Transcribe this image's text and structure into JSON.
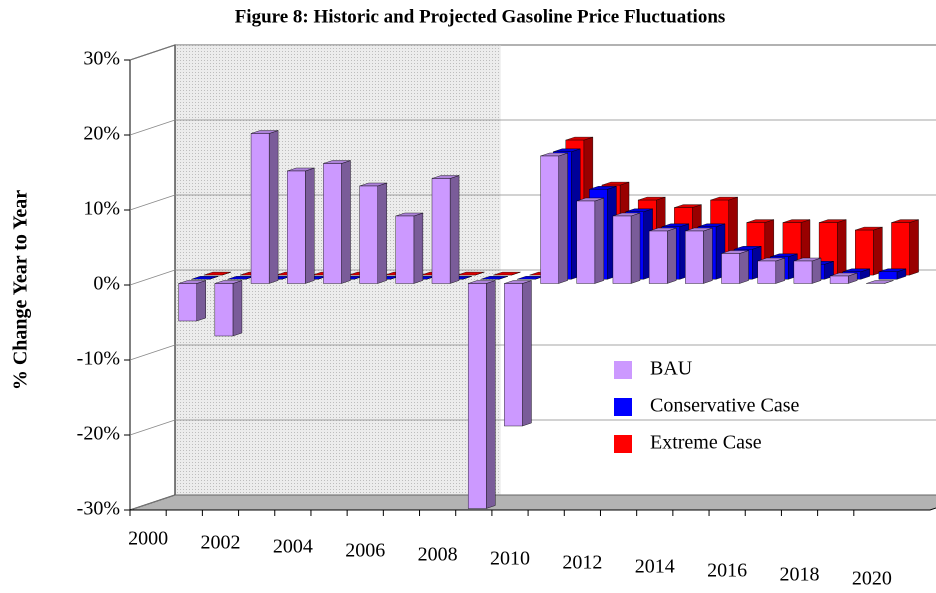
{
  "chart_data": {
    "type": "bar3d",
    "title": "Figure 8: Historic and Projected Gasoline Price Fluctuations",
    "y_label": "% Change Year to Year",
    "categories": [
      "2000",
      null,
      "2002",
      null,
      "2004",
      null,
      "2006",
      null,
      "2008",
      null,
      "2010",
      null,
      "2012",
      null,
      "2014",
      null,
      "2016",
      null,
      "2018",
      null,
      "2020"
    ],
    "series": [
      {
        "name": "BAU",
        "color": "#cc99ff",
        "values": [
          null,
          -5,
          -7,
          20,
          15,
          16,
          13,
          9,
          14,
          -30,
          -19,
          17,
          11,
          9,
          7,
          7,
          4,
          3,
          3,
          1,
          0
        ]
      },
      {
        "name": "Conservative Case",
        "color": "#0000ff",
        "values": [
          null,
          0,
          0,
          0,
          0,
          0,
          0,
          0,
          0,
          0,
          0,
          17,
          12,
          9,
          7,
          7,
          4,
          3,
          2,
          1,
          1
        ]
      },
      {
        "name": "Extreme Case",
        "color": "#ff0000",
        "values": [
          null,
          0,
          0,
          0,
          0,
          0,
          0,
          0,
          0,
          0,
          0,
          18,
          12,
          10,
          9,
          10,
          7,
          7,
          7,
          6,
          7
        ]
      }
    ],
    "ylim": [
      -30,
      30
    ],
    "yticks": [
      {
        "value": -30,
        "label": "-30%"
      },
      {
        "value": -20,
        "label": "-20%"
      },
      {
        "value": -10,
        "label": "-10%"
      },
      {
        "value": 0,
        "label": "0%"
      },
      {
        "value": 10,
        "label": "10%"
      },
      {
        "value": 20,
        "label": "20%"
      },
      {
        "value": 30,
        "label": "30%"
      }
    ],
    "grid": true
  }
}
